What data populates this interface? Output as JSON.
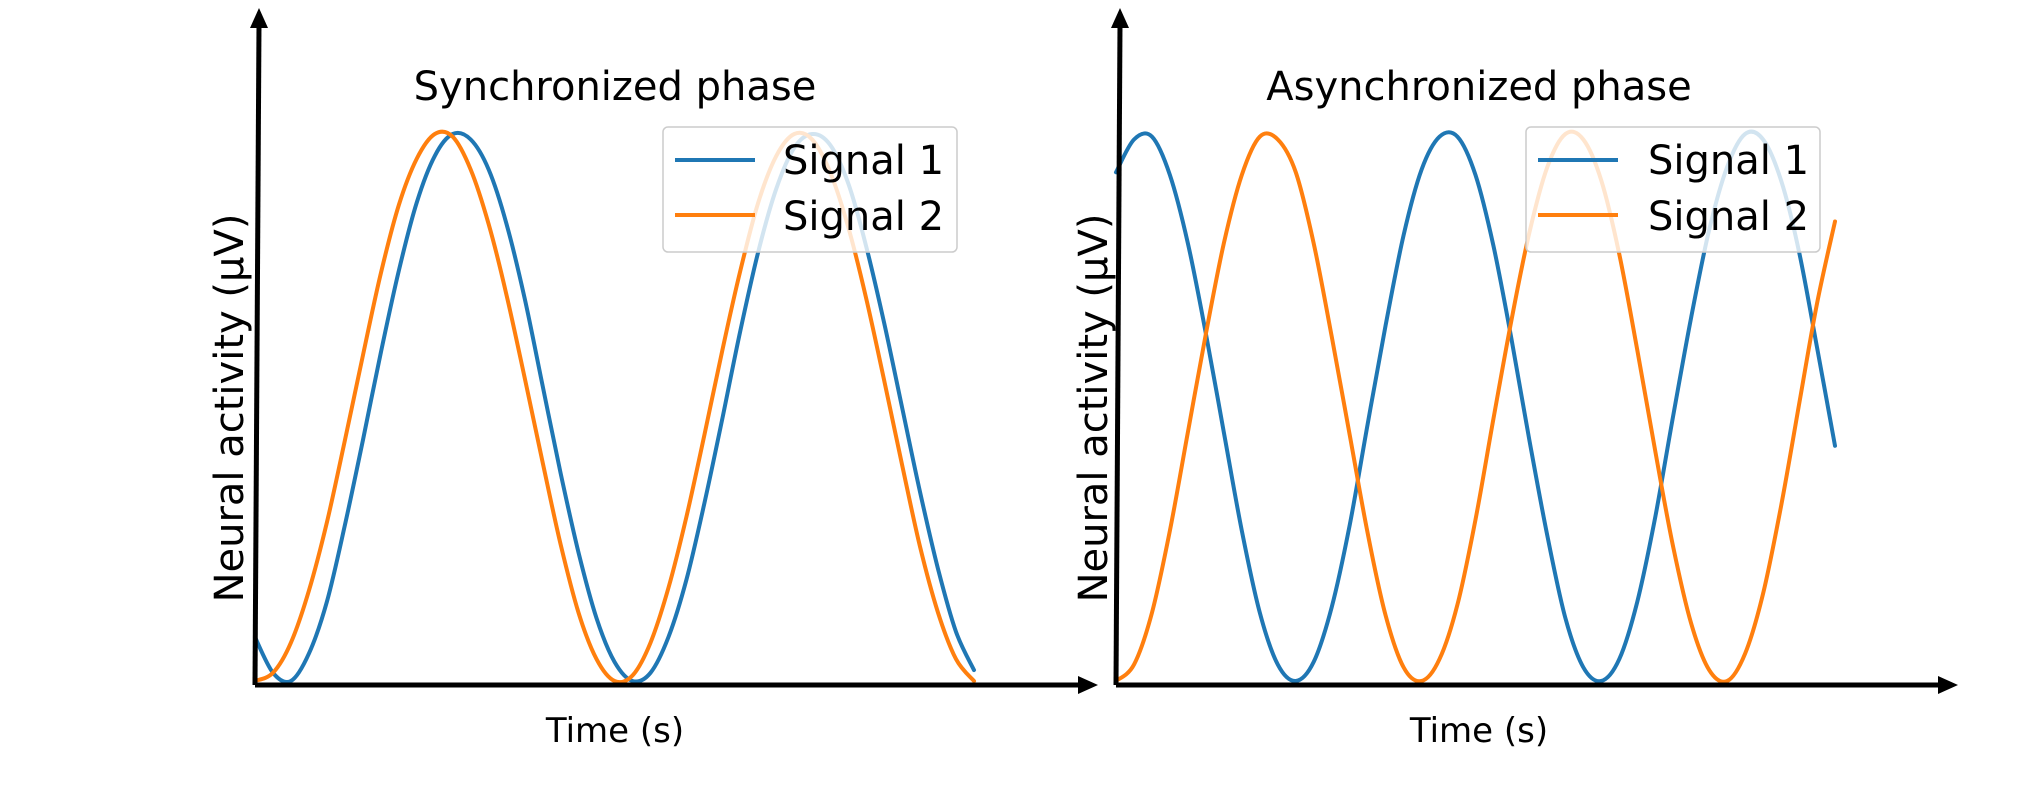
{
  "chart_data": [
    {
      "type": "line",
      "title": "Synchronized phase",
      "xlabel": "Time (s)",
      "ylabel": "Neural activity (µV)",
      "xlim": [
        0,
        10
      ],
      "ylim": [
        -1,
        1
      ],
      "x": [
        0.0,
        0.25,
        0.5,
        0.75,
        1.0,
        1.25,
        1.5,
        1.75,
        2.0,
        2.25,
        2.5,
        2.75,
        3.0,
        3.25,
        3.5,
        3.75,
        4.0,
        4.25,
        4.5,
        4.75,
        5.0,
        5.25,
        5.5,
        5.75,
        6.0,
        6.25,
        6.5,
        6.75,
        7.0,
        7.25,
        7.5,
        7.75,
        8.0,
        8.25,
        8.5,
        8.75,
        9.0,
        9.25,
        9.5,
        9.75,
        10.0
      ],
      "legend": "upper right",
      "series": [
        {
          "name": "Signal 1",
          "color": "#1f77b4",
          "values": [
            -0.84,
            -0.97,
            -1.0,
            -0.9,
            -0.71,
            -0.43,
            -0.12,
            0.2,
            0.5,
            0.75,
            0.92,
            1.0,
            0.98,
            0.87,
            0.67,
            0.4,
            0.08,
            -0.24,
            -0.53,
            -0.77,
            -0.93,
            -1.0,
            -0.97,
            -0.84,
            -0.63,
            -0.35,
            -0.04,
            0.28,
            0.57,
            0.8,
            0.95,
            1.0,
            0.96,
            0.82,
            0.59,
            0.31,
            0.0,
            -0.31,
            -0.59,
            -0.82,
            -0.96
          ]
        },
        {
          "name": "Signal 2",
          "color": "#ff7f0e",
          "values": [
            -1.0,
            -0.97,
            -0.86,
            -0.67,
            -0.42,
            -0.12,
            0.19,
            0.49,
            0.74,
            0.91,
            1.0,
            0.99,
            0.87,
            0.67,
            0.41,
            0.11,
            -0.2,
            -0.5,
            -0.75,
            -0.92,
            -1.0,
            -0.98,
            -0.86,
            -0.66,
            -0.4,
            -0.1,
            0.21,
            0.5,
            0.75,
            0.92,
            1.0,
            0.98,
            0.86,
            0.66,
            0.4,
            0.1,
            -0.21,
            -0.51,
            -0.75,
            -0.92,
            -1.0
          ]
        }
      ]
    },
    {
      "type": "line",
      "title": "Asynchronized phase",
      "xlabel": "Time (s)",
      "ylabel": "Neural activity (µV)",
      "xlim": [
        0,
        10
      ],
      "ylim": [
        -1,
        1
      ],
      "x": [
        0.0,
        0.25,
        0.5,
        0.75,
        1.0,
        1.25,
        1.5,
        1.75,
        2.0,
        2.25,
        2.5,
        2.75,
        3.0,
        3.25,
        3.5,
        3.75,
        4.0,
        4.25,
        4.5,
        4.75,
        5.0,
        5.25,
        5.5,
        5.75,
        6.0,
        6.25,
        6.5,
        6.75,
        7.0,
        7.25,
        7.5,
        7.75,
        8.0,
        8.25,
        8.5,
        8.75,
        9.0,
        9.25,
        9.5,
        9.75,
        10.0
      ],
      "legend": "upper right",
      "series": [
        {
          "name": "Signal 1",
          "color": "#1f77b4",
          "values": [
            0.86,
            0.98,
            0.99,
            0.85,
            0.6,
            0.27,
            -0.09,
            -0.45,
            -0.75,
            -0.94,
            -1.0,
            -0.93,
            -0.73,
            -0.43,
            -0.06,
            0.3,
            0.63,
            0.87,
            0.99,
            0.99,
            0.85,
            0.59,
            0.25,
            -0.12,
            -0.47,
            -0.77,
            -0.95,
            -1.0,
            -0.92,
            -0.71,
            -0.4,
            -0.03,
            0.33,
            0.65,
            0.88,
            1.0,
            0.98,
            0.83,
            0.57,
            0.22,
            -0.14
          ]
        },
        {
          "name": "Signal 2",
          "color": "#ff7f0e",
          "values": [
            -1.0,
            -0.94,
            -0.75,
            -0.45,
            -0.09,
            0.27,
            0.6,
            0.85,
            0.99,
            0.98,
            0.86,
            0.6,
            0.26,
            -0.1,
            -0.46,
            -0.76,
            -0.95,
            -1.0,
            -0.92,
            -0.72,
            -0.41,
            -0.04,
            0.32,
            0.64,
            0.88,
            1.0,
            0.98,
            0.83,
            0.56,
            0.21,
            -0.16,
            -0.51,
            -0.79,
            -0.96,
            -1.0,
            -0.9,
            -0.68,
            -0.36,
            0.01,
            0.38,
            0.68
          ]
        }
      ]
    }
  ]
}
